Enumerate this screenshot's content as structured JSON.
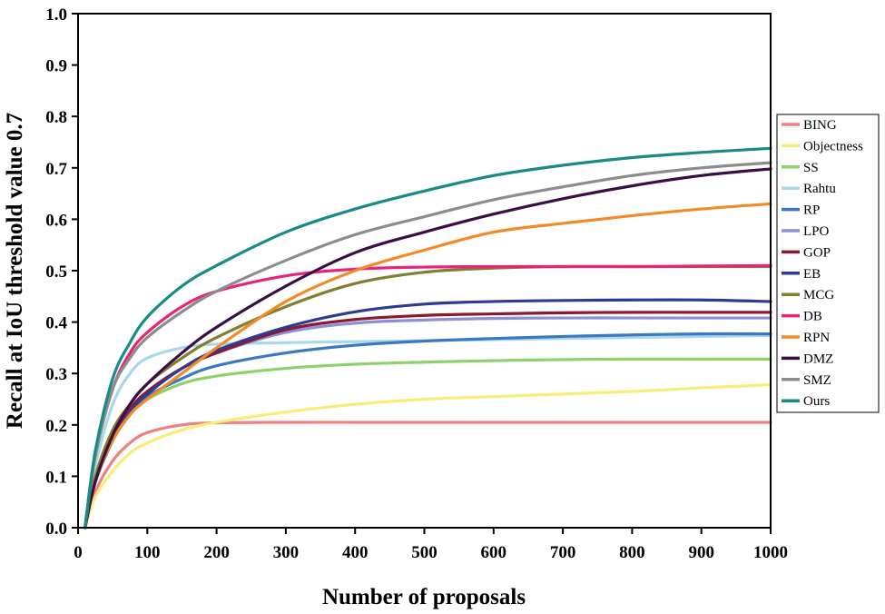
{
  "chart_data": {
    "type": "line",
    "title": "",
    "xlabel": "Number of proposals",
    "ylabel": "Recall at IoU threshold value 0.7",
    "xlim": [
      0,
      1000
    ],
    "ylim": [
      0.0,
      1.0
    ],
    "xticks": [
      0,
      100,
      200,
      300,
      400,
      500,
      600,
      700,
      800,
      900,
      1000
    ],
    "yticks": [
      "0.0",
      "0.1",
      "0.2",
      "0.3",
      "0.4",
      "0.5",
      "0.6",
      "0.7",
      "0.8",
      "0.9",
      "1.0"
    ],
    "grid": false,
    "legend_position": "right",
    "x": [
      10,
      25,
      50,
      75,
      100,
      150,
      200,
      300,
      400,
      500,
      600,
      700,
      800,
      900,
      1000
    ],
    "series": [
      {
        "name": "BING",
        "color": "#f08080",
        "values": [
          0,
          0.07,
          0.13,
          0.165,
          0.185,
          0.2,
          0.204,
          0.205,
          0.205,
          0.205,
          0.205,
          0.205,
          0.205,
          0.205,
          0.205
        ]
      },
      {
        "name": "Objectness",
        "color": "#f7ee7a",
        "values": [
          0,
          0.06,
          0.11,
          0.145,
          0.165,
          0.19,
          0.205,
          0.225,
          0.24,
          0.25,
          0.255,
          0.26,
          0.265,
          0.272,
          0.278
        ]
      },
      {
        "name": "SS",
        "color": "#8ed16a",
        "values": [
          0,
          0.09,
          0.17,
          0.22,
          0.25,
          0.28,
          0.295,
          0.31,
          0.318,
          0.322,
          0.325,
          0.327,
          0.328,
          0.328,
          0.328
        ]
      },
      {
        "name": "Rahtu",
        "color": "#a8d8ea",
        "values": [
          0,
          0.12,
          0.24,
          0.3,
          0.33,
          0.35,
          0.357,
          0.36,
          0.362,
          0.364,
          0.366,
          0.368,
          0.37,
          0.372,
          0.374
        ]
      },
      {
        "name": "RP",
        "color": "#3a78c2",
        "values": [
          0,
          0.09,
          0.17,
          0.22,
          0.255,
          0.29,
          0.315,
          0.34,
          0.355,
          0.363,
          0.368,
          0.372,
          0.375,
          0.377,
          0.377
        ]
      },
      {
        "name": "LPO",
        "color": "#8d8fd6",
        "values": [
          0,
          0.09,
          0.17,
          0.23,
          0.265,
          0.31,
          0.34,
          0.38,
          0.398,
          0.404,
          0.407,
          0.408,
          0.408,
          0.408,
          0.408
        ]
      },
      {
        "name": "GOP",
        "color": "#8b1a2e",
        "values": [
          0,
          0.09,
          0.17,
          0.23,
          0.265,
          0.31,
          0.34,
          0.385,
          0.405,
          0.413,
          0.416,
          0.418,
          0.419,
          0.419,
          0.419
        ]
      },
      {
        "name": "EB",
        "color": "#2e3a94",
        "values": [
          0,
          0.09,
          0.17,
          0.225,
          0.26,
          0.31,
          0.345,
          0.39,
          0.42,
          0.435,
          0.44,
          0.442,
          0.443,
          0.443,
          0.44
        ]
      },
      {
        "name": "MCG",
        "color": "#7f7f2f",
        "values": [
          0,
          0.1,
          0.19,
          0.24,
          0.28,
          0.33,
          0.37,
          0.43,
          0.475,
          0.497,
          0.505,
          0.508,
          0.508,
          0.508,
          0.508
        ]
      },
      {
        "name": "DB",
        "color": "#e8247a",
        "values": [
          0,
          0.14,
          0.27,
          0.34,
          0.38,
          0.43,
          0.46,
          0.49,
          0.503,
          0.507,
          0.508,
          0.508,
          0.508,
          0.509,
          0.51
        ]
      },
      {
        "name": "RPN",
        "color": "#f28a26",
        "values": [
          0,
          0.09,
          0.17,
          0.22,
          0.25,
          0.3,
          0.35,
          0.44,
          0.5,
          0.54,
          0.575,
          0.592,
          0.607,
          0.62,
          0.63
        ]
      },
      {
        "name": "DMZ",
        "color": "#3a0d45",
        "values": [
          0,
          0.09,
          0.18,
          0.24,
          0.28,
          0.34,
          0.39,
          0.47,
          0.535,
          0.575,
          0.61,
          0.64,
          0.665,
          0.685,
          0.698
        ]
      },
      {
        "name": "SMZ",
        "color": "#8c8c8c",
        "values": [
          0,
          0.14,
          0.27,
          0.33,
          0.37,
          0.42,
          0.46,
          0.52,
          0.57,
          0.605,
          0.638,
          0.663,
          0.685,
          0.7,
          0.71
        ]
      },
      {
        "name": "Ours",
        "color": "#178b84",
        "values": [
          0,
          0.15,
          0.29,
          0.36,
          0.41,
          0.47,
          0.51,
          0.575,
          0.62,
          0.655,
          0.685,
          0.705,
          0.72,
          0.73,
          0.738
        ]
      }
    ]
  }
}
